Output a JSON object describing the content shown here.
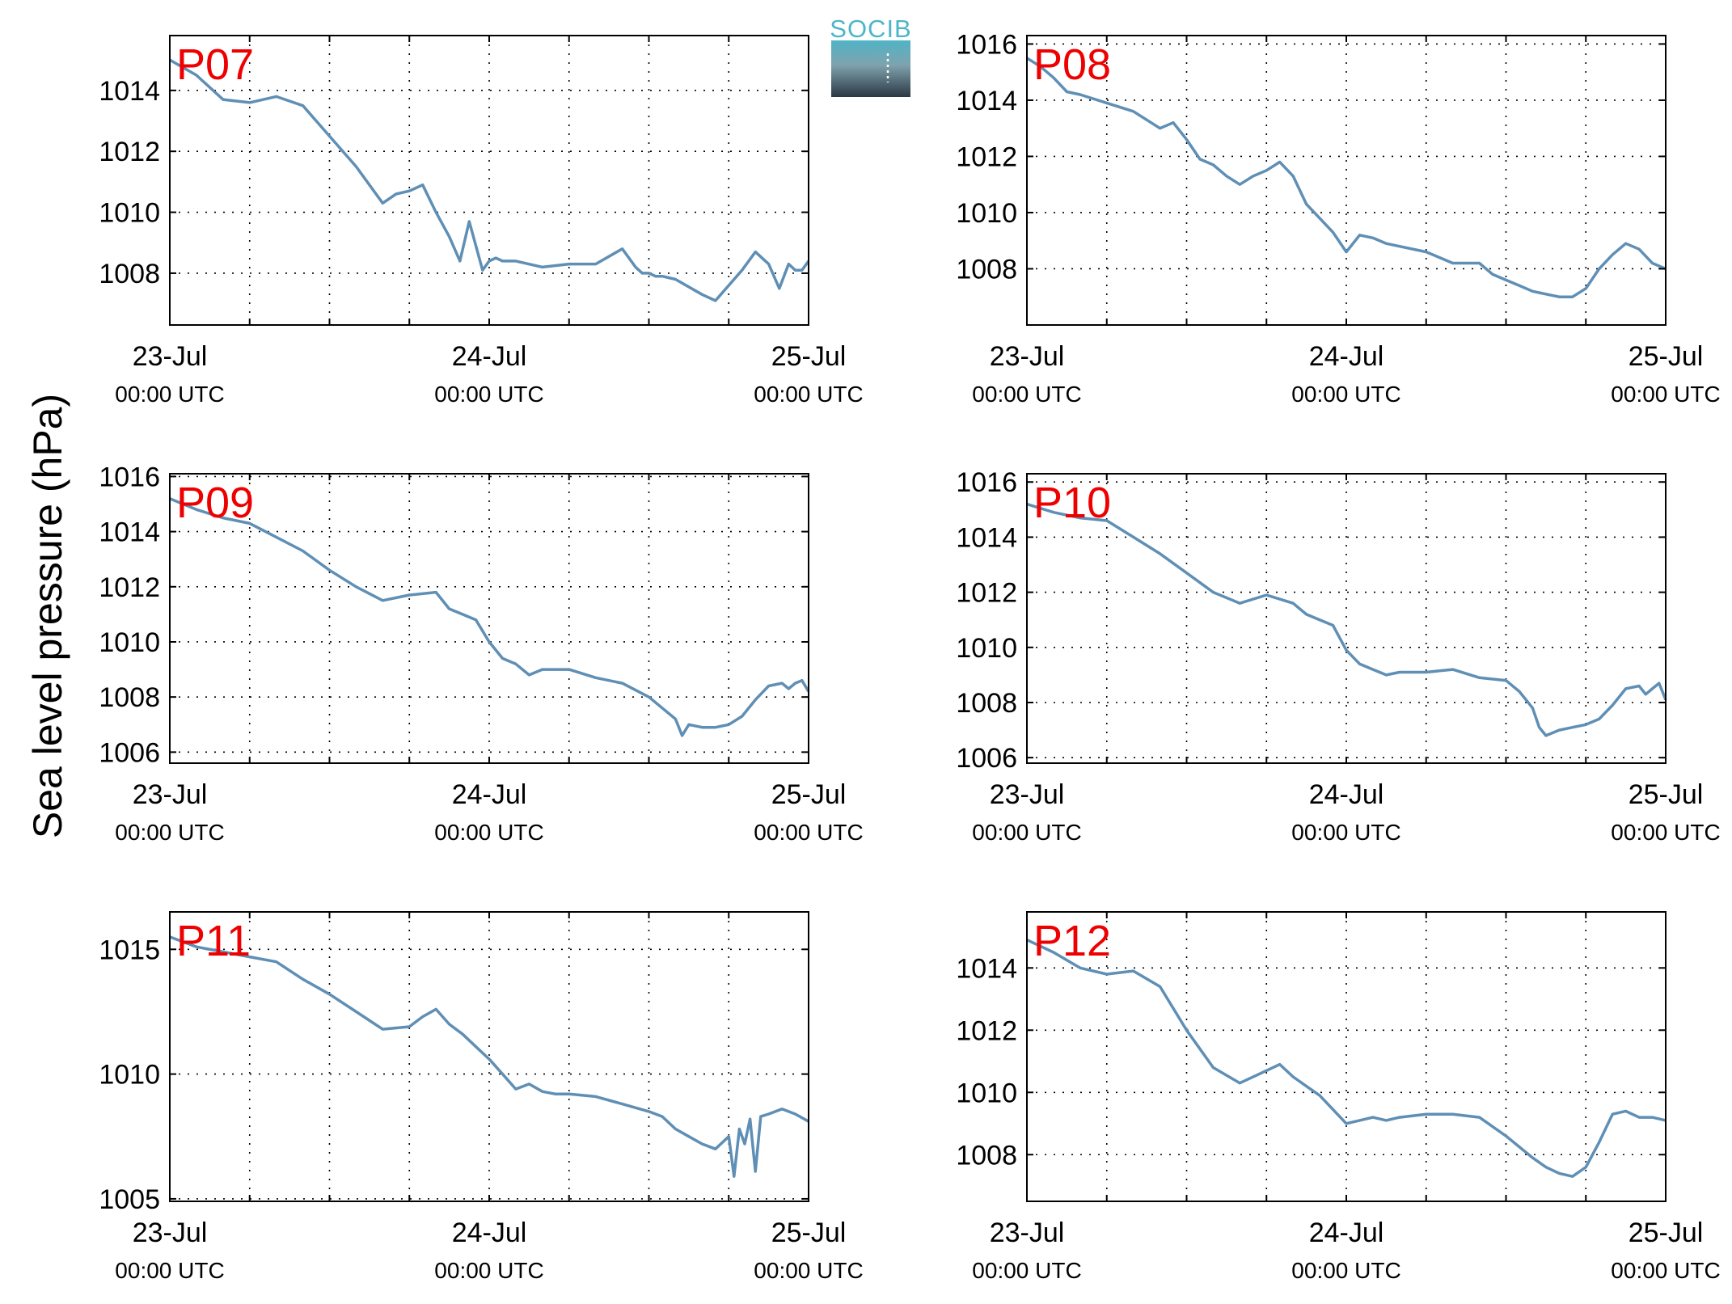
{
  "figure": {
    "ylabel": "Sea level pressure (hPa)",
    "logo_text": "SOCIB"
  },
  "colors": {
    "series_line": "#5f8fb5",
    "panel_label": "#ee0000",
    "logo_top": "#4cb5c8",
    "logo_bottom": "#2b3844"
  },
  "chart_data": [
    {
      "type": "line",
      "panel_label": "P07",
      "xlim": [
        "2017-07-23T00:00",
        "2017-07-25T00:00"
      ],
      "ylim": [
        1006.3,
        1015.8
      ],
      "yticks": [
        1008,
        1010,
        1012,
        1014
      ],
      "xtick_labels": [
        {
          "date": "23-Jul",
          "time": "00:00 UTC"
        },
        {
          "date": "24-Jul",
          "time": "00:00 UTC"
        },
        {
          "date": "25-Jul",
          "time": "00:00 UTC"
        }
      ],
      "grid": true,
      "series": [
        {
          "x": [
            0,
            2,
            4,
            6,
            8,
            10,
            12,
            14,
            16,
            17,
            18,
            19,
            20,
            21,
            21.8,
            22.5,
            23.5,
            24,
            24.5,
            25,
            26,
            28,
            30,
            32,
            34,
            35,
            35.5,
            36,
            36.5,
            37,
            38,
            40,
            41,
            42,
            43,
            44,
            45,
            45.8,
            46.5,
            47,
            47.5,
            48
          ],
          "y": [
            1015.0,
            1014.5,
            1013.7,
            1013.6,
            1013.8,
            1013.5,
            1012.5,
            1011.5,
            1010.3,
            1010.6,
            1010.7,
            1010.9,
            1010.0,
            1009.2,
            1008.4,
            1009.7,
            1008.1,
            1008.4,
            1008.5,
            1008.4,
            1008.4,
            1008.2,
            1008.3,
            1008.3,
            1008.8,
            1008.2,
            1008.0,
            1008.0,
            1007.9,
            1007.9,
            1007.8,
            1007.3,
            1007.1,
            1007.6,
            1008.1,
            1008.7,
            1008.3,
            1007.5,
            1008.3,
            1008.1,
            1008.1,
            1008.4
          ]
        }
      ]
    },
    {
      "type": "line",
      "panel_label": "P08",
      "xlim": [
        "2017-07-23T00:00",
        "2017-07-25T00:00"
      ],
      "ylim": [
        1006.0,
        1016.3
      ],
      "yticks": [
        1008,
        1010,
        1012,
        1014,
        1016
      ],
      "xtick_labels": [
        {
          "date": "23-Jul",
          "time": "00:00 UTC"
        },
        {
          "date": "24-Jul",
          "time": "00:00 UTC"
        },
        {
          "date": "25-Jul",
          "time": "00:00 UTC"
        }
      ],
      "grid": true,
      "series": [
        {
          "x": [
            0,
            1,
            2,
            3,
            4,
            6,
            8,
            10,
            11,
            12,
            13,
            14,
            15,
            16,
            17,
            18,
            19,
            20,
            21,
            22,
            23,
            24,
            25,
            26,
            27,
            28,
            30,
            32,
            34,
            35,
            36,
            37,
            38,
            39,
            40,
            41,
            42,
            43,
            44,
            45,
            46,
            47,
            48
          ],
          "y": [
            1015.5,
            1015.2,
            1014.8,
            1014.3,
            1014.2,
            1013.9,
            1013.6,
            1013.0,
            1013.2,
            1012.6,
            1011.9,
            1011.7,
            1011.3,
            1011.0,
            1011.3,
            1011.5,
            1011.8,
            1011.3,
            1010.3,
            1009.8,
            1009.3,
            1008.6,
            1009.2,
            1009.1,
            1008.9,
            1008.8,
            1008.6,
            1008.2,
            1008.2,
            1007.8,
            1007.6,
            1007.4,
            1007.2,
            1007.1,
            1007.0,
            1007.0,
            1007.3,
            1008.0,
            1008.5,
            1008.9,
            1008.7,
            1008.2,
            1008.0
          ]
        }
      ]
    },
    {
      "type": "line",
      "panel_label": "P09",
      "xlim": [
        "2017-07-23T00:00",
        "2017-07-25T00:00"
      ],
      "ylim": [
        1005.6,
        1016.1
      ],
      "yticks": [
        1006,
        1008,
        1010,
        1012,
        1014,
        1016
      ],
      "xtick_labels": [
        {
          "date": "23-Jul",
          "time": "00:00 UTC"
        },
        {
          "date": "24-Jul",
          "time": "00:00 UTC"
        },
        {
          "date": "25-Jul",
          "time": "00:00 UTC"
        }
      ],
      "grid": true,
      "series": [
        {
          "x": [
            0,
            2,
            4,
            6,
            8,
            10,
            12,
            14,
            16,
            18,
            20,
            21,
            22,
            23,
            24,
            25,
            26,
            27,
            28,
            30,
            32,
            34,
            36,
            37,
            38,
            38.5,
            39,
            40,
            41,
            42,
            43,
            44,
            45,
            46,
            46.5,
            47,
            47.5,
            48
          ],
          "y": [
            1015.2,
            1014.8,
            1014.5,
            1014.3,
            1013.8,
            1013.3,
            1012.6,
            1012.0,
            1011.5,
            1011.7,
            1011.8,
            1011.2,
            1011.0,
            1010.8,
            1010.0,
            1009.4,
            1009.2,
            1008.8,
            1009.0,
            1009.0,
            1008.7,
            1008.5,
            1008.0,
            1007.6,
            1007.2,
            1006.6,
            1007.0,
            1006.9,
            1006.9,
            1007.0,
            1007.3,
            1007.9,
            1008.4,
            1008.5,
            1008.3,
            1008.5,
            1008.6,
            1008.2
          ]
        }
      ]
    },
    {
      "type": "line",
      "panel_label": "P10",
      "xlim": [
        "2017-07-23T00:00",
        "2017-07-25T00:00"
      ],
      "ylim": [
        1005.8,
        1016.3
      ],
      "yticks": [
        1006,
        1008,
        1010,
        1012,
        1014,
        1016
      ],
      "xtick_labels": [
        {
          "date": "23-Jul",
          "time": "00:00 UTC"
        },
        {
          "date": "24-Jul",
          "time": "00:00 UTC"
        },
        {
          "date": "25-Jul",
          "time": "00:00 UTC"
        }
      ],
      "grid": true,
      "series": [
        {
          "x": [
            0,
            2,
            4,
            6,
            8,
            10,
            12,
            14,
            16,
            18,
            20,
            21,
            22,
            23,
            24,
            25,
            26,
            27,
            28,
            30,
            32,
            34,
            36,
            37,
            38,
            38.5,
            39,
            40,
            41,
            42,
            43,
            44,
            45,
            46,
            46.5,
            47,
            47.5,
            48
          ],
          "y": [
            1015.2,
            1014.9,
            1014.7,
            1014.6,
            1014.0,
            1013.4,
            1012.7,
            1012.0,
            1011.6,
            1011.9,
            1011.6,
            1011.2,
            1011.0,
            1010.8,
            1009.9,
            1009.4,
            1009.2,
            1009.0,
            1009.1,
            1009.1,
            1009.2,
            1008.9,
            1008.8,
            1008.4,
            1007.8,
            1007.1,
            1006.8,
            1007.0,
            1007.1,
            1007.2,
            1007.4,
            1007.9,
            1008.5,
            1008.6,
            1008.3,
            1008.5,
            1008.7,
            1008.1
          ]
        }
      ]
    },
    {
      "type": "line",
      "panel_label": "P11",
      "xlim": [
        "2017-07-23T00:00",
        "2017-07-25T00:00"
      ],
      "ylim": [
        1004.9,
        1016.5
      ],
      "yticks": [
        1005,
        1010,
        1015
      ],
      "xtick_labels": [
        {
          "date": "23-Jul",
          "time": "00:00 UTC"
        },
        {
          "date": "24-Jul",
          "time": "00:00 UTC"
        },
        {
          "date": "25-Jul",
          "time": "00:00 UTC"
        }
      ],
      "grid": true,
      "series": [
        {
          "x": [
            0,
            2,
            4,
            6,
            8,
            10,
            12,
            14,
            16,
            18,
            19,
            20,
            21,
            22,
            23,
            24,
            25,
            26,
            27,
            28,
            29,
            30,
            32,
            34,
            36,
            37,
            38,
            39,
            40,
            41,
            42,
            42.4,
            42.8,
            43.2,
            43.6,
            44,
            44.4,
            45,
            46,
            47,
            48
          ],
          "y": [
            1015.5,
            1015.1,
            1014.9,
            1014.7,
            1014.5,
            1013.8,
            1013.2,
            1012.5,
            1011.8,
            1011.9,
            1012.3,
            1012.6,
            1012.0,
            1011.6,
            1011.1,
            1010.6,
            1010.0,
            1009.4,
            1009.6,
            1009.3,
            1009.2,
            1009.2,
            1009.1,
            1008.8,
            1008.5,
            1008.3,
            1007.8,
            1007.5,
            1007.2,
            1007.0,
            1007.5,
            1005.9,
            1007.8,
            1007.2,
            1008.2,
            1006.1,
            1008.3,
            1008.4,
            1008.6,
            1008.4,
            1008.1
          ]
        }
      ]
    },
    {
      "type": "line",
      "panel_label": "P12",
      "xlim": [
        "2017-07-23T00:00",
        "2017-07-25T00:00"
      ],
      "ylim": [
        1006.5,
        1015.8
      ],
      "yticks": [
        1008,
        1010,
        1012,
        1014
      ],
      "xtick_labels": [
        {
          "date": "23-Jul",
          "time": "00:00 UTC"
        },
        {
          "date": "24-Jul",
          "time": "00:00 UTC"
        },
        {
          "date": "25-Jul",
          "time": "00:00 UTC"
        }
      ],
      "grid": true,
      "series": [
        {
          "x": [
            0,
            2,
            4,
            6,
            8,
            10,
            12,
            14,
            16,
            18,
            19,
            20,
            21,
            22,
            24,
            26,
            27,
            28,
            30,
            32,
            34,
            36,
            38,
            39,
            40,
            41,
            42,
            43,
            44,
            45,
            46,
            47,
            48
          ],
          "y": [
            1014.9,
            1014.5,
            1014.0,
            1013.8,
            1013.9,
            1013.4,
            1012.0,
            1010.8,
            1010.3,
            1010.7,
            1010.9,
            1010.5,
            1010.2,
            1009.9,
            1009.0,
            1009.2,
            1009.1,
            1009.2,
            1009.3,
            1009.3,
            1009.2,
            1008.6,
            1007.9,
            1007.6,
            1007.4,
            1007.3,
            1007.6,
            1008.4,
            1009.3,
            1009.4,
            1009.2,
            1009.2,
            1009.1
          ]
        }
      ]
    }
  ]
}
